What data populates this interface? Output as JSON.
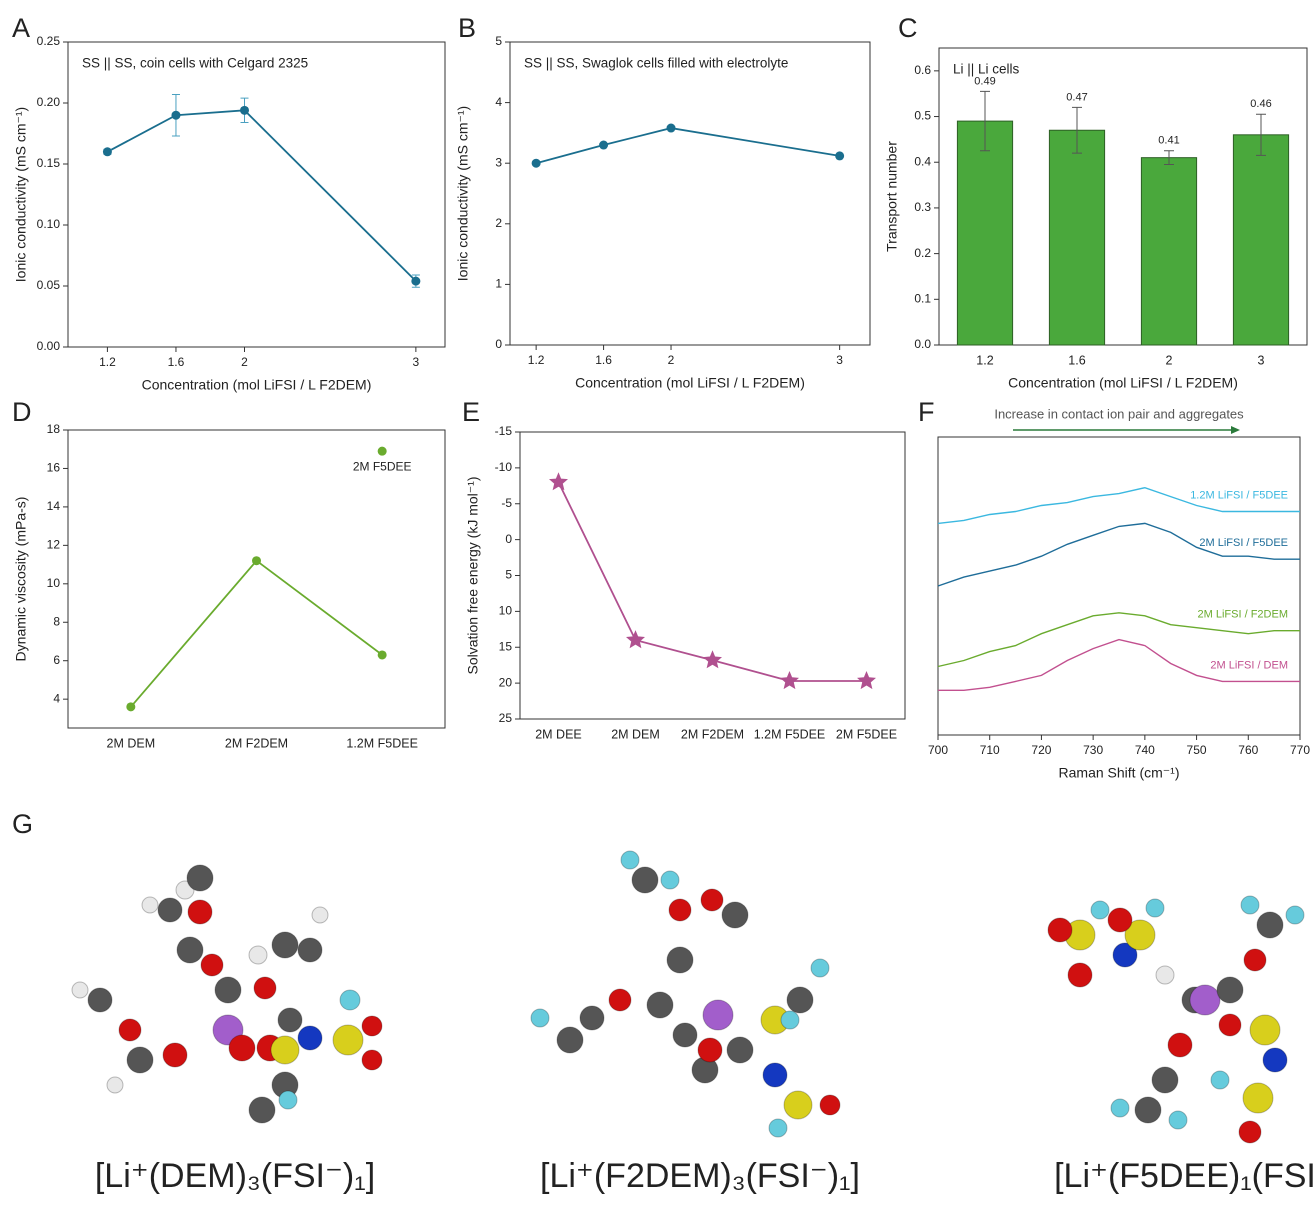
{
  "chart_data": [
    {
      "type": "line",
      "panel": "A",
      "annotation": "SS || SS, coin cells with Celgard 2325",
      "xlabel": "Concentration (mol LiFSI / L F2DEM)",
      "ylabel": "Ionic conductivity (mS cm⁻¹)",
      "x": [
        1.2,
        1.6,
        2,
        3
      ],
      "values": [
        0.16,
        0.19,
        0.194,
        0.054
      ],
      "errors": [
        0.002,
        0.017,
        0.01,
        0.005
      ],
      "color": "#1a6e8e",
      "marker": "circle",
      "xlim": [
        0.97,
        3.17
      ],
      "xticks": [
        1.2,
        1.6,
        2,
        3
      ],
      "ylim": [
        0,
        0.25
      ],
      "yticks": [
        {
          "value": 0,
          "label": "0.00"
        },
        0.05,
        {
          "value": 0.1,
          "label": "0.10"
        },
        0.15,
        {
          "value": 0.2,
          "label": "0.20"
        },
        0.25
      ]
    },
    {
      "type": "line",
      "panel": "B",
      "annotation": "SS || SS, Swaglok cells filled with electrolyte",
      "xlabel": "Concentration (mol LiFSI / L F2DEM)",
      "ylabel": "Ionic conductivity (mS cm⁻¹)",
      "x": [
        1.2,
        1.6,
        2,
        3
      ],
      "values": [
        3.0,
        3.3,
        3.58,
        3.12
      ],
      "color": "#1a6e8e",
      "marker": "circle",
      "xlim": [
        1.045,
        3.18
      ],
      "xticks": [
        1.2,
        1.6,
        2,
        3
      ],
      "ylim": [
        0,
        5
      ],
      "yticks": [
        0,
        1,
        2,
        3,
        4,
        5
      ]
    },
    {
      "type": "bar",
      "panel": "C",
      "annotation": "Li || Li cells",
      "xlabel": "Concentration (mol LiFSI / L F2DEM)",
      "ylabel": "Transport number",
      "categories": [
        "1.2",
        "1.6",
        "2",
        "3"
      ],
      "values": [
        0.49,
        0.47,
        0.41,
        0.46
      ],
      "errors": [
        0.065,
        0.05,
        0.015,
        0.045
      ],
      "color": "#4aa83c",
      "ylim": [
        0,
        0.65
      ],
      "yticks": [
        {
          "value": 0,
          "label": "0.0"
        },
        0.1,
        0.2,
        0.3,
        0.4,
        0.5,
        0.6
      ]
    },
    {
      "type": "line",
      "panel": "D",
      "ylabel": "Dynamic viscosity (mPa-s)",
      "categories": [
        "2M DEM",
        "2M F2DEM",
        "1.2M F5DEE"
      ],
      "series": [
        {
          "values": [
            3.6,
            11.2,
            6.3
          ],
          "color": "#6aab2e"
        },
        {
          "name": "2M F5DEE",
          "values": [
            null,
            null,
            16.9
          ],
          "color": "#6aab2e",
          "line": false
        }
      ],
      "marker": "circle",
      "ylim": [
        2.5,
        18
      ],
      "yticks": [
        4,
        6,
        8,
        10,
        12,
        14,
        16,
        18
      ]
    },
    {
      "type": "line",
      "panel": "E",
      "ylabel": "Solvation free energy (kJ mol⁻¹)",
      "categories": [
        "2M DEE",
        "2M DEM",
        "2M F2DEM",
        "1.2M F5DEE",
        "2M F5DEE"
      ],
      "values": [
        -8,
        14,
        16.8,
        19.7,
        19.7
      ],
      "color": "#b0508f",
      "marker": "star",
      "ylim": [
        25,
        -15
      ],
      "yticks": [
        -15,
        -10,
        -5,
        0,
        5,
        10,
        15,
        20,
        25
      ]
    },
    {
      "type": "line",
      "panel": "F",
      "annotation": "Increase in contact ion pair and aggregates",
      "xlabel": "Raman Shift (cm⁻¹)",
      "x": [
        700,
        705,
        710,
        715,
        720,
        725,
        730,
        735,
        740,
        745,
        750,
        755,
        760,
        765,
        770
      ],
      "series": [
        {
          "name": "1.2M LiFSI / F5DEE",
          "color": "#3bb8e0",
          "values": [
            7.1,
            7.2,
            7.4,
            7.5,
            7.7,
            7.8,
            8.0,
            8.1,
            8.3,
            8.0,
            7.7,
            7.5,
            7.5,
            7.5,
            7.5
          ]
        },
        {
          "name": "2M LiFSI / F5DEE",
          "color": "#1f6d99",
          "values": [
            5.0,
            5.3,
            5.5,
            5.7,
            6.0,
            6.4,
            6.7,
            7.0,
            7.1,
            6.8,
            6.3,
            6.0,
            6.0,
            5.9,
            5.9
          ]
        },
        {
          "name": "2M LiFSI / F2DEM",
          "color": "#6aab2e",
          "values": [
            2.3,
            2.5,
            2.8,
            3.0,
            3.4,
            3.7,
            4.0,
            4.1,
            4.0,
            3.7,
            3.6,
            3.5,
            3.4,
            3.5,
            3.5
          ]
        },
        {
          "name": "2M LiFSI / DEM",
          "color": "#c2508f",
          "values": [
            1.5,
            1.5,
            1.6,
            1.8,
            2.0,
            2.5,
            2.9,
            3.2,
            3.0,
            2.4,
            2.0,
            1.8,
            1.8,
            1.8,
            1.8
          ]
        }
      ],
      "xlim": [
        700,
        770
      ],
      "xticks": [
        700,
        710,
        720,
        730,
        740,
        750,
        760,
        770
      ],
      "ylim": [
        0,
        10
      ]
    }
  ],
  "structures": {
    "panel": "G",
    "labels": [
      "[Li⁺(DEM)₃(FSI⁻)₁]",
      "[Li⁺(F2DEM)₃(FSI⁻)₁]",
      "[Li⁺(F5DEE)₁(FSI"
    ]
  }
}
